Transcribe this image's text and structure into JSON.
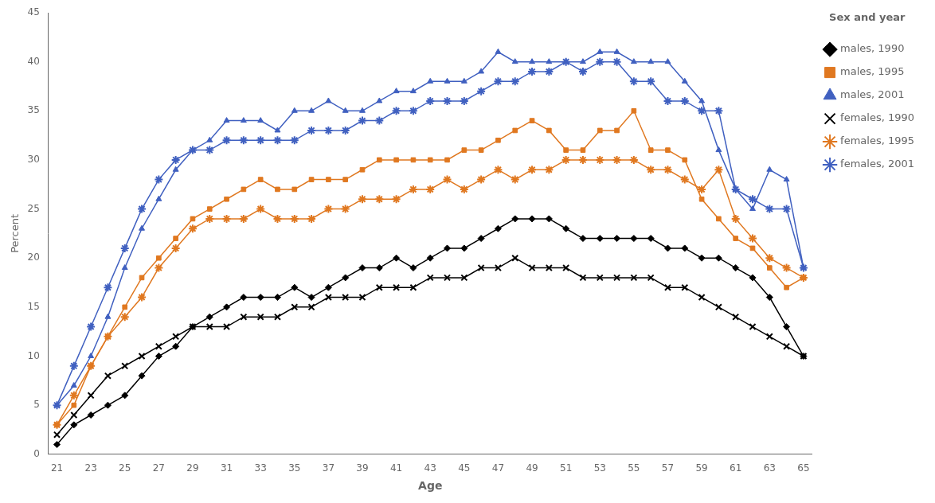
{
  "chart_data": {
    "type": "line",
    "xlabel": "Age",
    "ylabel": "Percent",
    "legend_title": "Sex and year",
    "x": [
      21,
      22,
      23,
      24,
      25,
      26,
      27,
      28,
      29,
      30,
      31,
      32,
      33,
      34,
      35,
      36,
      37,
      38,
      39,
      40,
      41,
      42,
      43,
      44,
      45,
      46,
      47,
      48,
      49,
      50,
      51,
      52,
      53,
      54,
      55,
      56,
      57,
      58,
      59,
      60,
      61,
      62,
      63,
      64,
      65
    ],
    "series": [
      {
        "name": "males, 1990",
        "color": "#000000",
        "marker": "diamond",
        "values": [
          1,
          3,
          4,
          5,
          6,
          8,
          10,
          11,
          13,
          14,
          15,
          16,
          16,
          16,
          17,
          16,
          17,
          18,
          19,
          19,
          20,
          19,
          20,
          21,
          21,
          22,
          23,
          24,
          24,
          24,
          23,
          22,
          22,
          22,
          22,
          22,
          21,
          21,
          20,
          20,
          19,
          18,
          16,
          13,
          10
        ]
      },
      {
        "name": "males, 1995",
        "color": "#e07820",
        "marker": "square",
        "values": [
          3,
          5,
          9,
          12,
          15,
          18,
          20,
          22,
          24,
          25,
          26,
          27,
          28,
          27,
          27,
          28,
          28,
          28,
          29,
          30,
          30,
          30,
          30,
          30,
          31,
          31,
          32,
          33,
          34,
          33,
          31,
          31,
          33,
          33,
          35,
          31,
          31,
          30,
          26,
          24,
          22,
          21,
          19,
          17,
          18
        ]
      },
      {
        "name": "males, 2001",
        "color": "#4060c0",
        "marker": "triangle",
        "values": [
          5,
          7,
          10,
          14,
          19,
          23,
          26,
          29,
          31,
          32,
          34,
          34,
          34,
          33,
          35,
          35,
          36,
          35,
          35,
          36,
          37,
          37,
          38,
          38,
          38,
          39,
          41,
          40,
          40,
          40,
          40,
          40,
          41,
          41,
          40,
          40,
          40,
          38,
          36,
          31,
          27,
          25,
          29,
          28,
          19
        ]
      },
      {
        "name": "females, 1990",
        "color": "#000000",
        "marker": "x",
        "values": [
          2,
          4,
          6,
          8,
          9,
          10,
          11,
          12,
          13,
          13,
          13,
          14,
          14,
          14,
          15,
          15,
          16,
          16,
          16,
          17,
          17,
          17,
          18,
          18,
          18,
          19,
          19,
          20,
          19,
          19,
          19,
          18,
          18,
          18,
          18,
          18,
          17,
          17,
          16,
          15,
          14,
          13,
          12,
          11,
          10
        ]
      },
      {
        "name": "females, 1995",
        "color": "#e07820",
        "marker": "star",
        "values": [
          3,
          6,
          9,
          12,
          14,
          16,
          19,
          21,
          23,
          24,
          24,
          24,
          25,
          24,
          24,
          24,
          25,
          25,
          26,
          26,
          26,
          27,
          27,
          28,
          27,
          28,
          29,
          28,
          29,
          29,
          30,
          30,
          30,
          30,
          30,
          29,
          29,
          28,
          27,
          29,
          24,
          22,
          20,
          19,
          18
        ]
      },
      {
        "name": "females, 2001",
        "color": "#4060c0",
        "marker": "star",
        "values": [
          5,
          9,
          13,
          17,
          21,
          25,
          28,
          30,
          31,
          31,
          32,
          32,
          32,
          32,
          32,
          33,
          33,
          33,
          34,
          34,
          35,
          35,
          36,
          36,
          36,
          37,
          38,
          38,
          39,
          39,
          40,
          39,
          40,
          40,
          38,
          38,
          36,
          36,
          35,
          35,
          27,
          26,
          25,
          25,
          19
        ]
      }
    ],
    "xlim": [
      20.5,
      65.5
    ],
    "ylim": [
      0,
      45
    ],
    "xticks": [
      21,
      23,
      25,
      27,
      29,
      31,
      33,
      35,
      37,
      39,
      41,
      43,
      45,
      47,
      49,
      51,
      53,
      55,
      57,
      59,
      61,
      63,
      65
    ],
    "yticks": [
      0,
      5,
      10,
      15,
      20,
      25,
      30,
      35,
      40,
      45
    ],
    "grid": false,
    "legend": "right"
  }
}
